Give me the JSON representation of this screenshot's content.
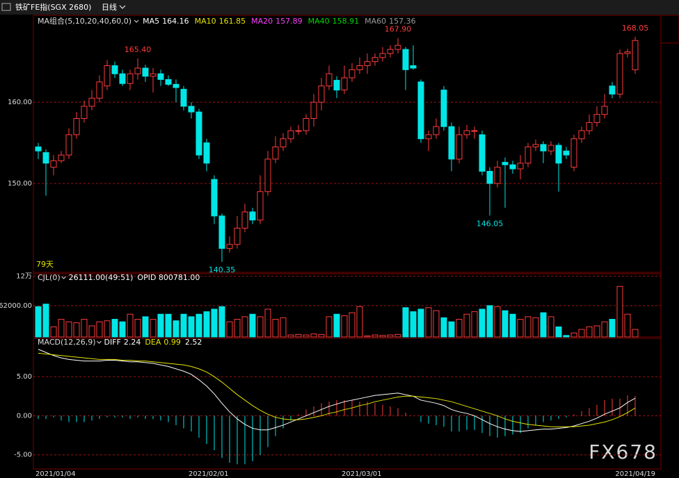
{
  "chart_data": {
    "type": "candlestick",
    "header": {
      "title": "铁矿FE指(SGX 2680)",
      "period": "日线"
    },
    "ma_legend": {
      "title": "MA组合(5,10,20,40,60,0)",
      "items": [
        {
          "name": "MA5",
          "value": 164.16,
          "color": "#ffffff"
        },
        {
          "name": "MA10",
          "value": 161.85,
          "color": "#e6e600"
        },
        {
          "name": "MA20",
          "value": 157.89,
          "color": "#ff40ff"
        },
        {
          "name": "MA40",
          "value": 158.91,
          "color": "#00d800"
        },
        {
          "name": "MA60",
          "value": 157.36,
          "color": "#9a9a9a"
        }
      ]
    },
    "days_label": "79天",
    "categories": [
      "2021/01/04",
      null,
      null,
      null,
      null,
      null,
      null,
      null,
      null,
      null,
      null,
      null,
      null,
      null,
      null,
      null,
      null,
      null,
      null,
      null,
      "2021/02/01",
      null,
      null,
      null,
      null,
      null,
      null,
      null,
      null,
      null,
      null,
      null,
      null,
      null,
      null,
      null,
      null,
      null,
      null,
      null,
      "2021/03/01",
      null,
      null,
      null,
      null,
      null,
      null,
      null,
      null,
      null,
      null,
      null,
      null,
      null,
      null,
      null,
      null,
      null,
      null,
      null,
      null,
      null,
      null,
      null,
      null,
      null,
      null,
      null,
      null,
      null,
      null,
      null,
      null,
      null,
      null,
      null,
      null,
      null,
      "2021/04/19"
    ],
    "open": [
      154.5,
      153.8,
      152,
      152.8,
      153.5,
      156,
      158,
      159.5,
      160.5,
      162,
      164.5,
      163.5,
      162.3,
      163.5,
      164.2,
      163.2,
      163.5,
      162.8,
      162.2,
      161.6,
      159.5,
      158.8,
      155,
      150.5,
      146,
      142,
      142.5,
      144.5,
      146.5,
      145.5,
      149,
      153,
      154.5,
      155.5,
      156.5,
      156.5,
      158,
      160,
      162,
      162.7,
      161.5,
      163,
      164,
      164.5,
      165,
      165.5,
      166,
      166.5,
      166.5,
      164.5,
      162.5,
      155.5,
      156,
      161.5,
      157,
      153,
      156,
      156.5,
      156,
      151.5,
      150,
      152.6,
      152.3,
      151.8,
      152.5,
      154.5,
      154.8,
      154,
      154.7,
      154,
      152,
      155.5,
      156.5,
      157.5,
      158.5,
      162,
      161,
      166,
      164
    ],
    "high": [
      155,
      154.2,
      153.5,
      154,
      156.8,
      158.8,
      160.2,
      161.5,
      163.3,
      165.2,
      165,
      164,
      164,
      165.4,
      164.6,
      164.2,
      164,
      163.3,
      162.8,
      162,
      160,
      159.2,
      155.5,
      151,
      146.3,
      143.5,
      146,
      147.5,
      147,
      151,
      154,
      155.8,
      156.2,
      157,
      157.2,
      158.5,
      161,
      163,
      164.5,
      163.2,
      164.5,
      164.8,
      165.5,
      166,
      166,
      166.8,
      167,
      167.9,
      166.8,
      167,
      162.8,
      156.5,
      158,
      162,
      157.5,
      157,
      157.2,
      157,
      156.5,
      152,
      152.8,
      153.2,
      152.8,
      153.5,
      155,
      155.4,
      155.2,
      155.2,
      155,
      154.5,
      156,
      157,
      158.5,
      159.5,
      161,
      162.5,
      166.5,
      166.6,
      168.05
    ],
    "low": [
      153,
      148.5,
      151,
      152.5,
      153,
      155.5,
      157.5,
      159,
      160,
      161.5,
      163,
      162,
      161.5,
      162.8,
      162.5,
      161.2,
      162,
      162,
      160,
      159,
      158,
      153,
      151.5,
      145,
      140.35,
      141.5,
      142,
      144,
      145,
      145,
      148.5,
      152.5,
      154,
      155,
      156,
      156,
      157,
      159,
      161.5,
      160.5,
      161,
      162.5,
      163.5,
      163.5,
      164.5,
      165,
      165.5,
      166,
      161.5,
      164,
      155,
      154,
      155.5,
      156.5,
      151.5,
      152.5,
      155.5,
      155.5,
      151,
      146.05,
      149.5,
      147,
      151.2,
      150.5,
      152,
      154,
      152.5,
      153.5,
      149,
      153,
      151.5,
      155,
      156,
      157,
      158,
      160.5,
      160.5,
      165.5,
      163.5
    ],
    "close": [
      154,
      152.5,
      152.8,
      153.5,
      156,
      158,
      159.5,
      160.5,
      162.5,
      164.5,
      163.5,
      162.3,
      163.5,
      164.2,
      163.2,
      163.5,
      162.8,
      162.2,
      161.8,
      159.5,
      158.8,
      153.5,
      152.5,
      146,
      142,
      142.5,
      144.5,
      146.5,
      145.5,
      149,
      153,
      154.5,
      155.5,
      156.5,
      156.5,
      158,
      160,
      162,
      163.5,
      161.5,
      163,
      164,
      164.5,
      165,
      165.5,
      166,
      166.5,
      167,
      164,
      164.2,
      155.5,
      156,
      157,
      157,
      153,
      156,
      156.5,
      156.5,
      151.5,
      150,
      152,
      152.3,
      151.8,
      152.5,
      154.5,
      154.8,
      154,
      154.7,
      152.5,
      153.5,
      155.5,
      156.5,
      157.5,
      158.5,
      159.5,
      161,
      166,
      166.2,
      167.6
    ],
    "annotations": [
      {
        "value": 165.4,
        "label": "165.40"
      },
      {
        "value": 140.35,
        "label": "140.35"
      },
      {
        "value": 167.9,
        "label": "167.90"
      },
      {
        "value": 146.05,
        "label": "146.05"
      },
      {
        "value": 168.05,
        "label": "168.05"
      }
    ],
    "ylim": [
      139.06,
      170.7
    ],
    "yticks": [
      {
        "value": 150,
        "label": "150.00"
      },
      {
        "value": 160,
        "label": "160.00"
      }
    ],
    "volume": {
      "label": "CJL(0)",
      "info": "26111.00(49:51)",
      "opid": "OPID 800781.00",
      "ylim": [
        0,
        125000
      ],
      "yticks": [
        {
          "value": 62000,
          "label": "62000.00"
        },
        {
          "value": 120000,
          "label": "12万"
        }
      ],
      "values": [
        60000,
        65000,
        20000,
        35000,
        30000,
        28000,
        35000,
        22000,
        30000,
        32000,
        35000,
        30000,
        45000,
        35000,
        40000,
        35000,
        45000,
        45000,
        32000,
        45000,
        40000,
        45000,
        50000,
        55000,
        60000,
        30000,
        35000,
        40000,
        45000,
        40000,
        55000,
        35000,
        38000,
        4000,
        5000,
        4000,
        6000,
        5000,
        40000,
        45000,
        42000,
        48000,
        60000,
        2000,
        4000,
        3000,
        4000,
        5000,
        58000,
        50000,
        55000,
        58000,
        52000,
        38000,
        30000,
        35000,
        45000,
        50000,
        55000,
        62000,
        60000,
        52000,
        45000,
        35000,
        40000,
        38000,
        48000,
        40000,
        20000,
        3000,
        8000,
        15000,
        20000,
        22000,
        30000,
        35000,
        100000,
        45000,
        15000
      ]
    },
    "macd": {
      "label": "MACD(12,26,9)",
      "diff_name": "DIFF",
      "diff_value": 2.24,
      "dea_name": "DEA",
      "dea_value": 0.99,
      "macd_value": 2.52,
      "ylim": [
        -6.8,
        9.9
      ],
      "yticks": [
        {
          "value": 5,
          "label": "5.00"
        },
        {
          "value": 0,
          "label": "0.00"
        },
        {
          "value": -5,
          "label": "-5.00"
        }
      ],
      "diff": [
        8.5,
        8.1,
        7.7,
        7.4,
        7.2,
        7.1,
        7.0,
        7.0,
        7.0,
        7.1,
        7.1,
        7.0,
        6.9,
        6.9,
        6.8,
        6.7,
        6.5,
        6.3,
        6.0,
        5.7,
        5.3,
        4.6,
        3.8,
        2.8,
        1.6,
        0.5,
        -0.4,
        -1.1,
        -1.6,
        -1.8,
        -1.8,
        -1.5,
        -1.2,
        -0.8,
        -0.4,
        0.0,
        0.4,
        0.8,
        1.2,
        1.5,
        1.8,
        2.0,
        2.2,
        2.4,
        2.6,
        2.7,
        2.8,
        2.9,
        2.7,
        2.5,
        2.0,
        1.8,
        1.6,
        1.3,
        0.8,
        0.5,
        0.3,
        0.0,
        -0.5,
        -1.0,
        -1.4,
        -1.7,
        -1.9,
        -2.0,
        -1.9,
        -1.8,
        -1.7,
        -1.7,
        -1.6,
        -1.5,
        -1.3,
        -1.0,
        -0.7,
        -0.3,
        0.2,
        0.6,
        1.0,
        1.7,
        2.24
      ],
      "dea": [
        8.0,
        7.9,
        7.8,
        7.7,
        7.6,
        7.5,
        7.4,
        7.3,
        7.2,
        7.2,
        7.2,
        7.1,
        7.1,
        7.0,
        7.0,
        6.9,
        6.8,
        6.7,
        6.6,
        6.5,
        6.3,
        6.0,
        5.6,
        5.0,
        4.3,
        3.5,
        2.7,
        2.0,
        1.3,
        0.7,
        0.2,
        -0.2,
        -0.4,
        -0.5,
        -0.5,
        -0.4,
        -0.2,
        0.0,
        0.3,
        0.5,
        0.8,
        1.0,
        1.3,
        1.5,
        1.8,
        2.0,
        2.2,
        2.4,
        2.5,
        2.5,
        2.4,
        2.3,
        2.2,
        2.0,
        1.8,
        1.5,
        1.2,
        0.9,
        0.6,
        0.3,
        0.0,
        -0.4,
        -0.7,
        -0.9,
        -1.1,
        -1.2,
        -1.3,
        -1.4,
        -1.4,
        -1.4,
        -1.4,
        -1.3,
        -1.2,
        -1.0,
        -0.8,
        -0.5,
        -0.1,
        0.4,
        0.99
      ],
      "hist": [
        -0.4,
        -0.4,
        -0.2,
        -0.6,
        -0.8,
        -0.8,
        -0.8,
        -0.6,
        -0.4,
        -0.2,
        -0.2,
        -0.2,
        -0.4,
        -0.2,
        -0.4,
        -0.4,
        -0.6,
        -0.8,
        -1.2,
        -1.6,
        -2.0,
        -2.8,
        -3.6,
        -4.4,
        -5.4,
        -6.0,
        -6.2,
        -6.2,
        -5.8,
        -5.0,
        -4.0,
        -2.6,
        -1.6,
        -0.6,
        0.2,
        0.8,
        1.2,
        1.6,
        1.8,
        2.0,
        2.0,
        2.0,
        1.8,
        1.8,
        1.6,
        1.4,
        1.2,
        1.0,
        0.4,
        0.0,
        -0.8,
        -1.0,
        -1.2,
        -1.4,
        -2.0,
        -2.0,
        -1.8,
        -1.8,
        -2.2,
        -2.6,
        -2.8,
        -2.6,
        -2.4,
        -2.2,
        -1.6,
        -1.2,
        -0.8,
        -0.6,
        -0.4,
        -0.2,
        0.2,
        0.6,
        1.0,
        1.4,
        2.0,
        2.2,
        2.2,
        2.6,
        2.52
      ]
    },
    "watermark": "FX678"
  }
}
